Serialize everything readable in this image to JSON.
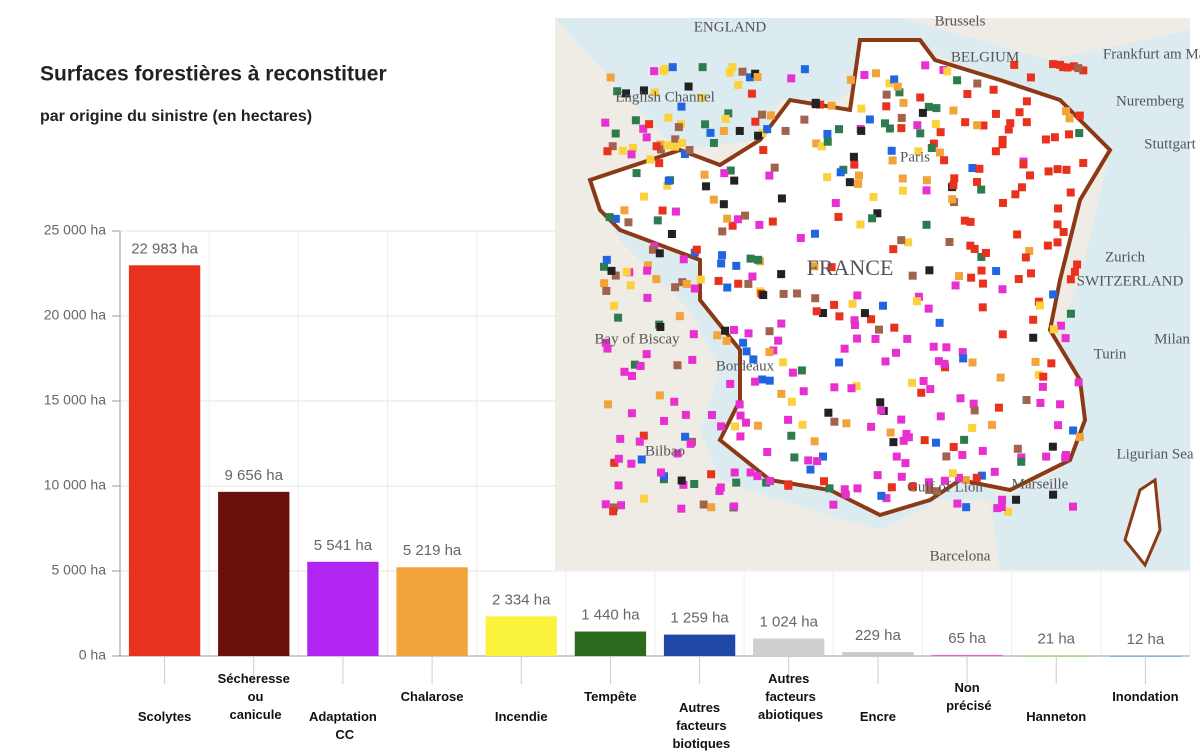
{
  "chart_data": {
    "type": "bar",
    "title": "Surfaces forestières à reconstituer",
    "subtitle": "par origine du sinistre (en hectares)",
    "categories": [
      "Scolytes",
      "Sécheresse ou canicule",
      "Adaptation CC",
      "Chalarose",
      "Incendie",
      "Tempête",
      "Autres facteurs biotiques",
      "Autres facteurs abiotiques",
      "Encre",
      "Non précisé",
      "Hanneton",
      "Inondation"
    ],
    "values": [
      22983,
      9656,
      5541,
      5219,
      2334,
      1440,
      1259,
      1024,
      229,
      65,
      21,
      12
    ],
    "value_labels": [
      "22 983 ha",
      "9 656 ha",
      "5 541 ha",
      "5 219 ha",
      "2 334 ha",
      "1 440 ha",
      "1 259 ha",
      "1 024 ha",
      "229 ha",
      "65 ha",
      "21 ha",
      "12 ha"
    ],
    "colors": [
      "#e8321e",
      "#6b0f0c",
      "#b026f0",
      "#f2a33a",
      "#fbf23c",
      "#2e6b1e",
      "#1f47a8",
      "#cfcfcf",
      "#c8c8c8",
      "#e85fcf",
      "#7ac94a",
      "#5aa6e0"
    ],
    "ylim": [
      0,
      25000
    ],
    "yticks": [
      {
        "value": 0,
        "label": "0 ha"
      },
      {
        "value": 5000,
        "label": "5 000 ha"
      },
      {
        "value": 10000,
        "label": "10 000 ha"
      },
      {
        "value": 15000,
        "label": "15 000 ha"
      },
      {
        "value": 20000,
        "label": "20 000 ha"
      },
      {
        "value": 25000,
        "label": "25 000 ha"
      }
    ],
    "grid": true
  },
  "map_labels": [
    "ENGLAND",
    "Brussels",
    "BELGIUM",
    "English Channel",
    "Frankfurt am Main",
    "Nuremberg",
    "Stuttgart",
    "Paris",
    "FRANCE",
    "Zurich",
    "SWITZERLAND",
    "Bay of Biscay",
    "Bordeaux",
    "Turin",
    "Milan",
    "Bilbao",
    "Gulf of Lion",
    "Marseille",
    "Ligurian Sea",
    "Barcelona"
  ]
}
